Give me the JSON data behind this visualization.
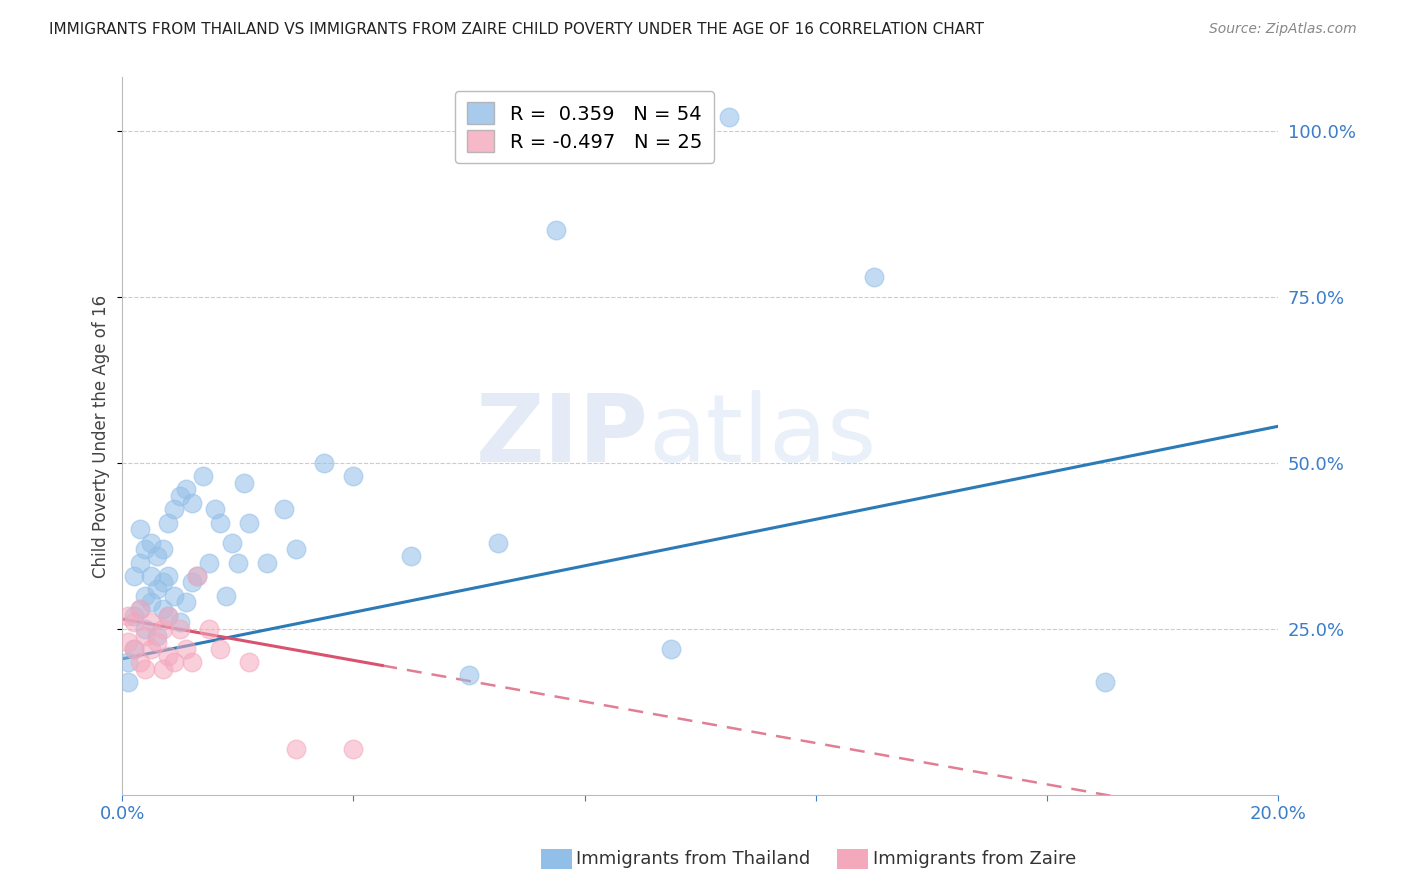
{
  "title": "IMMIGRANTS FROM THAILAND VS IMMIGRANTS FROM ZAIRE CHILD POVERTY UNDER THE AGE OF 16 CORRELATION CHART",
  "source": "Source: ZipAtlas.com",
  "ylabel": "Child Poverty Under the Age of 16",
  "watermark_zip": "ZIP",
  "watermark_atlas": "atlas",
  "legend_thailand_R": 0.359,
  "legend_thailand_N": 54,
  "legend_zaire_R": -0.497,
  "legend_zaire_N": 25,
  "thailand_color": "#92bfe8",
  "zaire_color": "#f4a8bc",
  "trend_thailand_color": "#2c7bb6",
  "trend_zaire_color": "#d9536f",
  "xlim": [
    0.0,
    0.2
  ],
  "ylim": [
    0.0,
    1.08
  ],
  "yticks": [
    0.25,
    0.5,
    0.75,
    1.0
  ],
  "ytick_labels": [
    "25.0%",
    "50.0%",
    "75.0%",
    "100.0%"
  ],
  "xticks": [
    0.0,
    0.04,
    0.08,
    0.12,
    0.16,
    0.2
  ],
  "xtick_labels": [
    "0.0%",
    "",
    "",
    "",
    "",
    "20.0%"
  ],
  "thailand_x": [
    0.001,
    0.001,
    0.002,
    0.002,
    0.002,
    0.003,
    0.003,
    0.003,
    0.004,
    0.004,
    0.004,
    0.005,
    0.005,
    0.005,
    0.006,
    0.006,
    0.006,
    0.007,
    0.007,
    0.007,
    0.008,
    0.008,
    0.008,
    0.009,
    0.009,
    0.01,
    0.01,
    0.011,
    0.011,
    0.012,
    0.012,
    0.013,
    0.014,
    0.015,
    0.016,
    0.017,
    0.018,
    0.019,
    0.02,
    0.021,
    0.022,
    0.025,
    0.028,
    0.03,
    0.035,
    0.04,
    0.05,
    0.06,
    0.065,
    0.075,
    0.095,
    0.105,
    0.13,
    0.17
  ],
  "thailand_y": [
    0.17,
    0.2,
    0.22,
    0.27,
    0.33,
    0.28,
    0.35,
    0.4,
    0.25,
    0.3,
    0.37,
    0.29,
    0.33,
    0.38,
    0.24,
    0.31,
    0.36,
    0.28,
    0.32,
    0.37,
    0.27,
    0.33,
    0.41,
    0.3,
    0.43,
    0.26,
    0.45,
    0.29,
    0.46,
    0.32,
    0.44,
    0.33,
    0.48,
    0.35,
    0.43,
    0.41,
    0.3,
    0.38,
    0.35,
    0.47,
    0.41,
    0.35,
    0.43,
    0.37,
    0.5,
    0.48,
    0.36,
    0.18,
    0.38,
    0.85,
    0.22,
    1.02,
    0.78,
    0.17
  ],
  "zaire_x": [
    0.001,
    0.001,
    0.002,
    0.002,
    0.003,
    0.003,
    0.004,
    0.004,
    0.005,
    0.005,
    0.006,
    0.007,
    0.007,
    0.008,
    0.008,
    0.009,
    0.01,
    0.011,
    0.012,
    0.013,
    0.015,
    0.017,
    0.022,
    0.03,
    0.04
  ],
  "zaire_y": [
    0.23,
    0.27,
    0.22,
    0.26,
    0.2,
    0.28,
    0.19,
    0.24,
    0.22,
    0.26,
    0.23,
    0.19,
    0.25,
    0.21,
    0.27,
    0.2,
    0.25,
    0.22,
    0.2,
    0.33,
    0.25,
    0.22,
    0.2,
    0.07,
    0.07
  ],
  "trend_thailand_x0": 0.0,
  "trend_thailand_y0": 0.205,
  "trend_thailand_x1": 0.2,
  "trend_thailand_y1": 0.555,
  "trend_zaire_x0": 0.0,
  "trend_zaire_y0": 0.265,
  "trend_zaire_x1": 0.045,
  "trend_zaire_y1": 0.195,
  "trend_zaire_dash_x0": 0.045,
  "trend_zaire_dash_x1": 0.2,
  "background_color": "#ffffff",
  "grid_color": "#cccccc"
}
